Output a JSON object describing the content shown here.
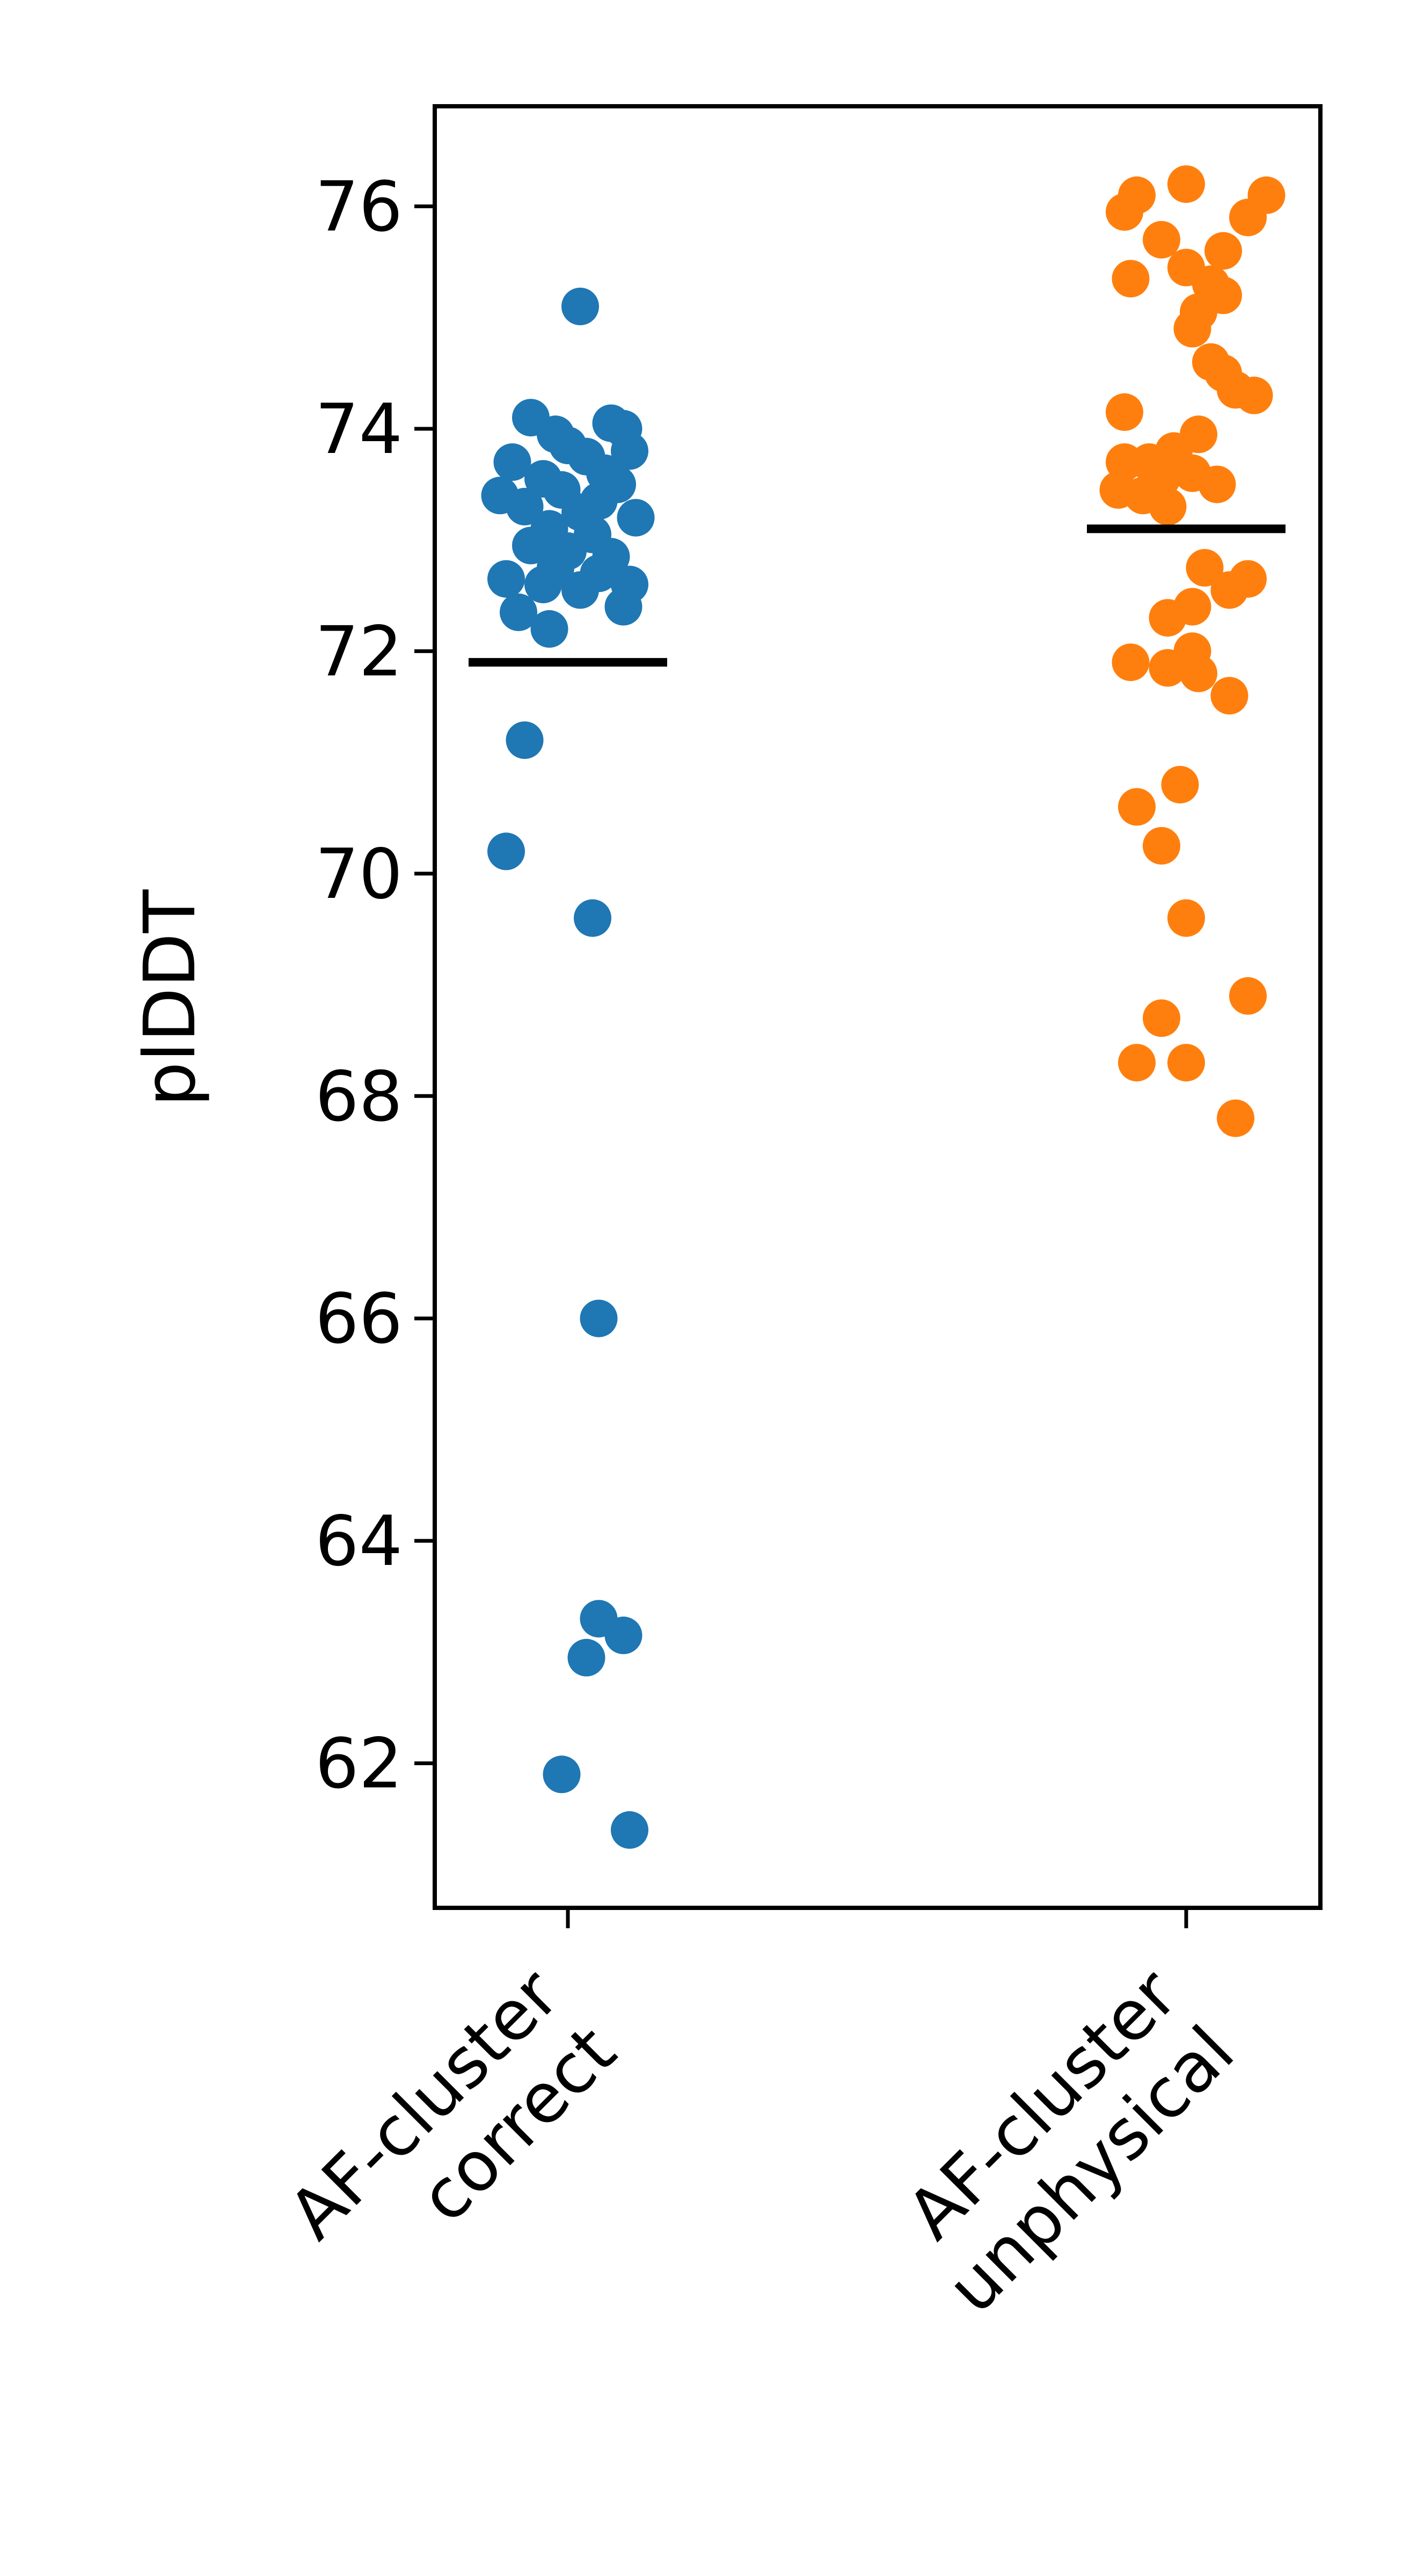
{
  "chart_data": {
    "type": "scatter",
    "title": "",
    "xlabel": "",
    "ylabel": "plDDT",
    "ylim": [
      60.7,
      76.9
    ],
    "yticks": [
      62,
      64,
      66,
      68,
      70,
      72,
      74,
      76
    ],
    "grid": false,
    "categories": [
      {
        "line1": "AF-cluster",
        "line2": "correct"
      },
      {
        "line1": "AF-cluster",
        "line2": "unphysical"
      }
    ],
    "series": [
      {
        "color": "#1f77b4",
        "mean": 71.9,
        "points": [
          [
            0.02,
            75.1
          ],
          [
            -0.06,
            74.1
          ],
          [
            0.07,
            74.05
          ],
          [
            0.09,
            74.0
          ],
          [
            -0.02,
            73.95
          ],
          [
            0.0,
            73.85
          ],
          [
            0.1,
            73.8
          ],
          [
            -0.09,
            73.7
          ],
          [
            0.03,
            73.75
          ],
          [
            0.06,
            73.6
          ],
          [
            -0.04,
            73.55
          ],
          [
            0.08,
            73.5
          ],
          [
            -0.11,
            73.4
          ],
          [
            -0.01,
            73.45
          ],
          [
            0.05,
            73.35
          ],
          [
            -0.07,
            73.3
          ],
          [
            0.02,
            73.25
          ],
          [
            0.11,
            73.2
          ],
          [
            -0.03,
            73.1
          ],
          [
            0.04,
            73.05
          ],
          [
            -0.06,
            72.95
          ],
          [
            0.0,
            72.9
          ],
          [
            0.07,
            72.85
          ],
          [
            -0.02,
            72.75
          ],
          [
            0.05,
            72.7
          ],
          [
            -0.1,
            72.65
          ],
          [
            0.1,
            72.6
          ],
          [
            -0.04,
            72.6
          ],
          [
            0.02,
            72.55
          ],
          [
            -0.08,
            72.35
          ],
          [
            0.09,
            72.4
          ],
          [
            -0.03,
            72.2
          ],
          [
            -0.07,
            71.2
          ],
          [
            -0.1,
            70.2
          ],
          [
            0.04,
            69.6
          ],
          [
            0.05,
            66.0
          ],
          [
            0.05,
            63.3
          ],
          [
            0.09,
            63.15
          ],
          [
            0.03,
            62.95
          ],
          [
            -0.01,
            61.9
          ],
          [
            0.1,
            61.4
          ]
        ]
      },
      {
        "color": "#ff7f0e",
        "mean": 73.1,
        "points": [
          [
            -0.08,
            76.1
          ],
          [
            0.0,
            76.2
          ],
          [
            0.13,
            76.1
          ],
          [
            -0.1,
            75.95
          ],
          [
            0.1,
            75.9
          ],
          [
            -0.04,
            75.7
          ],
          [
            0.06,
            75.6
          ],
          [
            0.0,
            75.45
          ],
          [
            -0.09,
            75.35
          ],
          [
            0.04,
            75.3
          ],
          [
            0.06,
            75.2
          ],
          [
            0.02,
            75.05
          ],
          [
            0.01,
            74.9
          ],
          [
            0.04,
            74.6
          ],
          [
            0.06,
            74.5
          ],
          [
            0.08,
            74.35
          ],
          [
            0.11,
            74.3
          ],
          [
            -0.1,
            74.15
          ],
          [
            0.02,
            73.95
          ],
          [
            -0.02,
            73.8
          ],
          [
            -0.1,
            73.7
          ],
          [
            -0.06,
            73.7
          ],
          [
            0.01,
            73.6
          ],
          [
            -0.04,
            73.55
          ],
          [
            0.05,
            73.5
          ],
          [
            -0.11,
            73.45
          ],
          [
            -0.07,
            73.4
          ],
          [
            -0.03,
            73.3
          ],
          [
            0.03,
            72.75
          ],
          [
            0.1,
            72.65
          ],
          [
            0.07,
            72.55
          ],
          [
            0.01,
            72.4
          ],
          [
            -0.03,
            72.3
          ],
          [
            0.01,
            72.0
          ],
          [
            -0.09,
            71.9
          ],
          [
            -0.03,
            71.85
          ],
          [
            0.02,
            71.8
          ],
          [
            0.07,
            71.6
          ],
          [
            -0.01,
            70.8
          ],
          [
            -0.08,
            70.6
          ],
          [
            -0.04,
            70.25
          ],
          [
            0.0,
            69.6
          ],
          [
            0.1,
            68.9
          ],
          [
            -0.04,
            68.7
          ],
          [
            -0.08,
            68.3
          ],
          [
            0.0,
            68.3
          ],
          [
            0.08,
            67.8
          ]
        ]
      }
    ]
  }
}
